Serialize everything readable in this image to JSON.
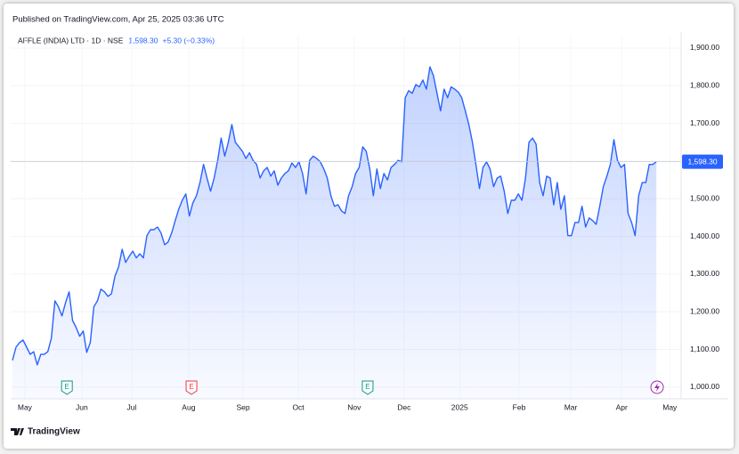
{
  "published": "Published on TradingView.com, Apr 25, 2025 03:36 UTC",
  "brand": "TradingView",
  "chart_data": {
    "type": "area",
    "title": "AFFLE (INDIA) LTD · 1D · NSE",
    "change": "+5.30 (+0.33%)",
    "last_price": {
      "value": 1598.3,
      "label": "1,598.30"
    },
    "color": "#2962ff",
    "series": [
      {
        "name": "AFFLE (INDIA) LTD",
        "color": "#2962ff",
        "values": [
          1071,
          1106,
          1118,
          1125,
          1106,
          1087,
          1094,
          1059,
          1087,
          1087,
          1094,
          1130,
          1229,
          1213,
          1189,
          1224,
          1253,
          1177,
          1158,
          1135,
          1149,
          1092,
          1118,
          1213,
          1229,
          1260,
          1253,
          1241,
          1248,
          1295,
          1319,
          1366,
          1331,
          1347,
          1361,
          1343,
          1354,
          1343,
          1402,
          1418,
          1418,
          1425,
          1409,
          1378,
          1385,
          1409,
          1442,
          1472,
          1496,
          1513,
          1454,
          1489,
          1508,
          1543,
          1591,
          1555,
          1520,
          1555,
          1602,
          1661,
          1613,
          1650,
          1697,
          1650,
          1638,
          1626,
          1607,
          1622,
          1602,
          1591,
          1555,
          1574,
          1583,
          1560,
          1574,
          1536,
          1555,
          1567,
          1574,
          1595,
          1583,
          1598,
          1567,
          1513,
          1602,
          1613,
          1607,
          1598,
          1579,
          1555,
          1508,
          1480,
          1484,
          1468,
          1461,
          1508,
          1532,
          1567,
          1583,
          1638,
          1626,
          1579,
          1508,
          1579,
          1527,
          1567,
          1550,
          1583,
          1591,
          1602,
          1598,
          1768,
          1787,
          1780,
          1803,
          1797,
          1815,
          1791,
          1850,
          1827,
          1780,
          1733,
          1791,
          1768,
          1797,
          1791,
          1783,
          1768,
          1733,
          1697,
          1650,
          1591,
          1527,
          1583,
          1598,
          1579,
          1532,
          1555,
          1560,
          1520,
          1461,
          1496,
          1496,
          1513,
          1496,
          1555,
          1650,
          1661,
          1645,
          1543,
          1508,
          1560,
          1555,
          1484,
          1543,
          1472,
          1508,
          1402,
          1402,
          1437,
          1437,
          1480,
          1425,
          1449,
          1442,
          1432,
          1480,
          1532,
          1560,
          1591,
          1657,
          1602,
          1583,
          1591,
          1461,
          1437,
          1402,
          1508,
          1543,
          1543,
          1591,
          1591,
          1598.3
        ]
      }
    ],
    "xlim": [
      -0.5,
      189
    ],
    "xticks": [
      {
        "value": 3.5,
        "label": "May"
      },
      {
        "value": 19.6,
        "label": "Jun"
      },
      {
        "value": 33.7,
        "label": "Jul"
      },
      {
        "value": 49.8,
        "label": "Aug"
      },
      {
        "value": 65.2,
        "label": "Sep"
      },
      {
        "value": 80.8,
        "label": "Oct"
      },
      {
        "value": 96.6,
        "label": "Nov"
      },
      {
        "value": 110.7,
        "label": "Dec"
      },
      {
        "value": 126.4,
        "label": "2025"
      },
      {
        "value": 143.2,
        "label": "Feb"
      },
      {
        "value": 157.8,
        "label": "Mar"
      },
      {
        "value": 172.2,
        "label": "Apr"
      },
      {
        "value": 185.8,
        "label": "May"
      }
    ],
    "ylim": [
      969,
      1933
    ],
    "yticks": [
      {
        "value": 1000,
        "label": "1,000.00"
      },
      {
        "value": 1100,
        "label": "1,100.00"
      },
      {
        "value": 1200,
        "label": "1,200.00"
      },
      {
        "value": 1300,
        "label": "1,300.00"
      },
      {
        "value": 1400,
        "label": "1,400.00"
      },
      {
        "value": 1500,
        "label": "1,500.00"
      },
      {
        "value": 1600,
        "label": "1,600.00"
      },
      {
        "value": 1700,
        "label": "1,700.00"
      },
      {
        "value": 1800,
        "label": "1,800.00"
      },
      {
        "value": 1900,
        "label": "1,900.00"
      }
    ],
    "events": [
      {
        "label": "E",
        "x": 15.4,
        "color": "#089981"
      },
      {
        "label": "E",
        "x": 50.6,
        "color": "#f23645"
      },
      {
        "label": "E",
        "x": 100.4,
        "color": "#089981"
      }
    ]
  }
}
